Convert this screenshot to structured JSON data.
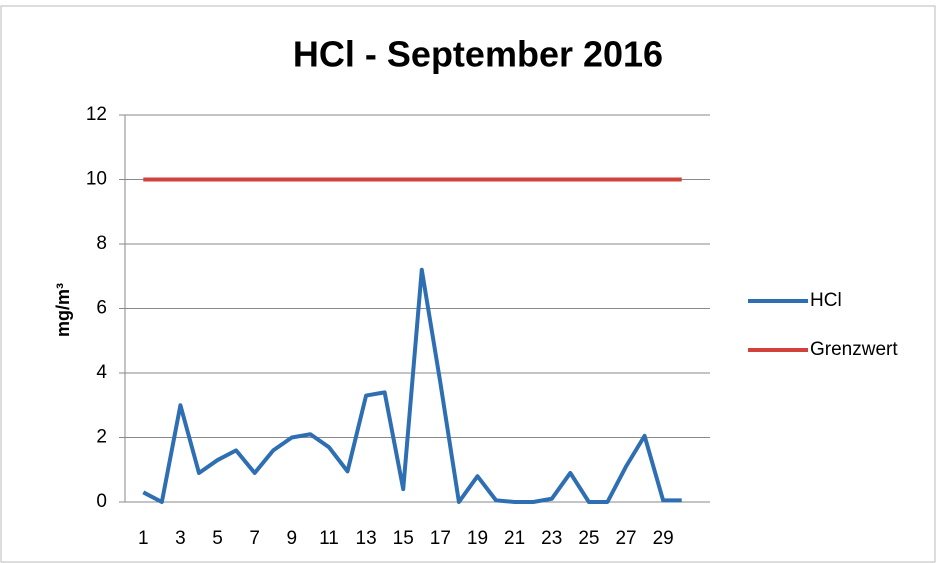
{
  "chart_data": {
    "type": "line",
    "title": "HCl - September 2016",
    "y_label": "mg/m³",
    "categories": [
      1,
      null,
      3,
      null,
      5,
      null,
      7,
      null,
      9,
      null,
      11,
      null,
      13,
      null,
      15,
      null,
      17,
      null,
      19,
      null,
      21,
      null,
      23,
      null,
      25,
      null,
      27,
      null,
      29,
      null
    ],
    "series": [
      {
        "name": "HCl",
        "color": "#2e6fb3",
        "values": [
          0.3,
          0.0,
          3.0,
          0.9,
          1.3,
          1.6,
          0.9,
          1.6,
          2.0,
          2.1,
          1.7,
          0.95,
          3.3,
          3.4,
          0.4,
          7.2,
          3.7,
          0.0,
          0.8,
          0.05,
          0.0,
          0.0,
          0.1,
          0.9,
          0.0,
          0.0,
          1.1,
          2.05,
          0.05,
          0.05
        ]
      },
      {
        "name": "Grenzwert",
        "color": "#d2413c",
        "values": [
          10,
          10,
          10,
          10,
          10,
          10,
          10,
          10,
          10,
          10,
          10,
          10,
          10,
          10,
          10,
          10,
          10,
          10,
          10,
          10,
          10,
          10,
          10,
          10,
          10,
          10,
          10,
          10,
          10,
          10
        ]
      }
    ],
    "ylim": [
      0,
      12
    ],
    "yticks": [
      0,
      2,
      4,
      6,
      8,
      10,
      12
    ],
    "grid": true,
    "legend": "right"
  }
}
